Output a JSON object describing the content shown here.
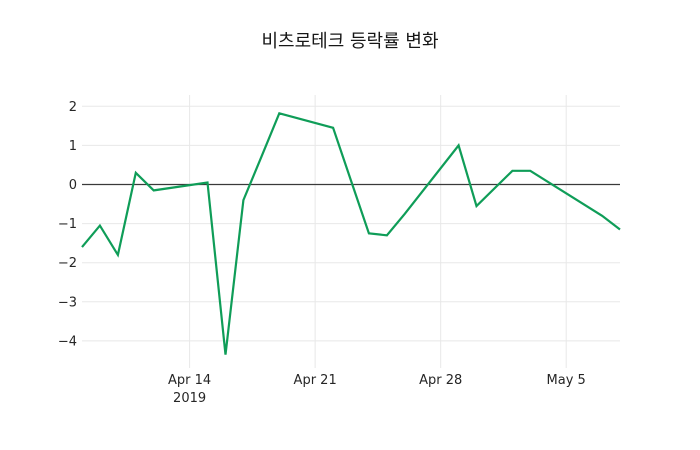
{
  "chart": {
    "title": "비츠로테크 등락률 변화",
    "colors": {
      "line": "#0f9d58",
      "grid": "#e8e8e8",
      "zero_line": "#3a3a3a",
      "tick_text": "#262626",
      "title_text": "#161616",
      "background": "#ffffff"
    }
  },
  "chart_data": {
    "type": "line",
    "title": "비츠로테크 등락률 변화",
    "xlabel": "",
    "ylabel": "",
    "grid": true,
    "legend": "none",
    "zero_line": true,
    "ylim": [
      -4.7,
      2.3
    ],
    "y_tick_values": [
      2,
      1,
      0,
      -1,
      -2,
      -3,
      -4
    ],
    "x_ticks": [
      {
        "date": "2019-04-14",
        "label": "Apr 14",
        "sub": "2019"
      },
      {
        "date": "2019-04-21",
        "label": "Apr 21",
        "sub": ""
      },
      {
        "date": "2019-04-28",
        "label": "Apr 28",
        "sub": ""
      },
      {
        "date": "2019-05-05",
        "label": "May 5",
        "sub": ""
      }
    ],
    "x": [
      "2019-04-08",
      "2019-04-09",
      "2019-04-10",
      "2019-04-11",
      "2019-04-12",
      "2019-04-15",
      "2019-04-16",
      "2019-04-17",
      "2019-04-18",
      "2019-04-19",
      "2019-04-22",
      "2019-04-23",
      "2019-04-24",
      "2019-04-25",
      "2019-04-26",
      "2019-04-29",
      "2019-04-30",
      "2019-05-02",
      "2019-05-03",
      "2019-05-07",
      "2019-05-08"
    ],
    "values": [
      -1.6,
      -1.05,
      -1.8,
      0.3,
      -0.15,
      0.05,
      -4.35,
      -0.4,
      0.7,
      1.82,
      1.45,
      0.1,
      -1.25,
      -1.3,
      -0.75,
      1.0,
      -0.55,
      0.35,
      0.35,
      -0.8,
      -1.15
    ]
  }
}
